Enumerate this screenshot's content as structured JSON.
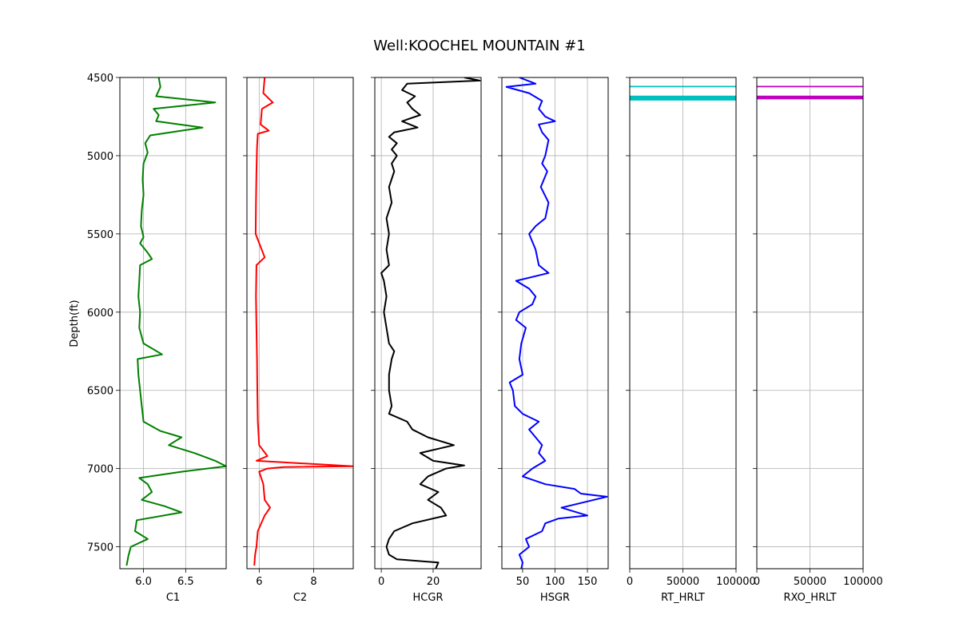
{
  "chart_data": {
    "type": "line",
    "title": "Well:KOOCHEL MOUNTAIN #1",
    "ylabel": "Depth(ft)",
    "ylim": [
      4500,
      7640
    ],
    "y_inverted": true,
    "yticks": [
      4500,
      5000,
      5500,
      6000,
      6500,
      7000,
      7500
    ],
    "grid": true,
    "tracks": [
      {
        "name": "C1",
        "xlabel": "C1",
        "color": "#008000",
        "xlim": [
          5.72,
          6.98
        ],
        "xticks": [
          6.0,
          6.5
        ],
        "xtick_labels": [
          "6.0",
          "6.5"
        ],
        "depth": [
          4500,
          4560,
          4620,
          4660,
          4700,
          4740,
          4780,
          4820,
          4840,
          4870,
          4920,
          4980,
          5050,
          5150,
          5250,
          5350,
          5450,
          5520,
          5560,
          5620,
          5660,
          5700,
          5800,
          5900,
          6000,
          6100,
          6200,
          6270,
          6300,
          6400,
          6500,
          6600,
          6700,
          6760,
          6800,
          6850,
          6900,
          6950,
          6985,
          7020,
          7060,
          7100,
          7150,
          7200,
          7240,
          7280,
          7330,
          7400,
          7450,
          7500,
          7560,
          7620
        ],
        "values": [
          6.18,
          6.2,
          6.15,
          6.85,
          6.12,
          6.18,
          6.15,
          6.7,
          6.45,
          6.08,
          6.02,
          6.05,
          6.0,
          5.99,
          6.0,
          5.98,
          5.97,
          6.0,
          5.96,
          6.05,
          6.1,
          5.96,
          5.95,
          5.94,
          5.96,
          5.95,
          6.0,
          6.22,
          5.93,
          5.94,
          5.96,
          5.98,
          6.0,
          6.2,
          6.45,
          6.3,
          6.6,
          6.85,
          6.98,
          6.45,
          5.95,
          6.05,
          6.1,
          5.98,
          6.25,
          6.45,
          5.92,
          5.9,
          6.05,
          5.85,
          5.82,
          5.8
        ]
      },
      {
        "name": "C2",
        "xlabel": "C2",
        "color": "#ff0000",
        "xlim": [
          5.55,
          9.45
        ],
        "xticks": [
          6,
          8
        ],
        "xtick_labels": [
          "6",
          "8"
        ],
        "depth": [
          4500,
          4600,
          4660,
          4700,
          4800,
          4840,
          4860,
          4950,
          5100,
          5300,
          5500,
          5650,
          5700,
          5900,
          6100,
          6300,
          6500,
          6700,
          6850,
          6920,
          6950,
          6985,
          6990,
          7000,
          7020,
          7100,
          7200,
          7250,
          7300,
          7400,
          7500,
          7550,
          7620
        ],
        "values": [
          6.2,
          6.15,
          6.5,
          6.1,
          6.05,
          6.35,
          5.95,
          5.92,
          5.9,
          5.88,
          5.87,
          6.2,
          5.9,
          5.88,
          5.9,
          5.92,
          5.93,
          5.95,
          6.0,
          6.3,
          5.9,
          9.45,
          6.9,
          6.3,
          6.0,
          6.15,
          6.2,
          6.4,
          6.2,
          5.95,
          5.9,
          5.85,
          5.82
        ]
      },
      {
        "name": "HCGR",
        "xlabel": "HCGR",
        "color": "#000000",
        "xlim": [
          -2.5,
          38.5
        ],
        "xticks": [
          0,
          20
        ],
        "xtick_labels": [
          "0",
          "20"
        ],
        "depth": [
          4500,
          4520,
          4540,
          4580,
          4620,
          4660,
          4700,
          4740,
          4780,
          4820,
          4850,
          4880,
          4920,
          4960,
          5000,
          5050,
          5100,
          5200,
          5300,
          5400,
          5500,
          5600,
          5700,
          5750,
          5800,
          5900,
          6000,
          6100,
          6200,
          6250,
          6300,
          6400,
          6500,
          6600,
          6650,
          6700,
          6750,
          6800,
          6850,
          6900,
          6950,
          6980,
          7000,
          7050,
          7100,
          7150,
          7200,
          7250,
          7300,
          7350,
          7400,
          7450,
          7500,
          7550,
          7580,
          7600,
          7640
        ],
        "values": [
          32,
          38,
          10,
          8,
          13,
          10,
          12,
          15,
          8,
          14,
          5,
          3,
          6,
          4,
          6,
          4,
          5,
          3,
          4,
          2,
          3,
          2,
          3,
          0,
          1,
          2,
          1,
          2,
          3,
          5,
          4,
          3,
          3,
          4,
          3,
          10,
          12,
          18,
          28,
          15,
          20,
          32,
          25,
          18,
          15,
          22,
          18,
          23,
          25,
          12,
          5,
          3,
          2,
          3,
          6,
          22,
          21
        ]
      },
      {
        "name": "HSGR",
        "xlabel": "HSGR",
        "color": "#0000ff",
        "xlim": [
          18,
          182
        ],
        "xticks": [
          50,
          100,
          150
        ],
        "xtick_labels": [
          "50",
          "100",
          "150"
        ],
        "depth": [
          4500,
          4540,
          4560,
          4600,
          4650,
          4700,
          4750,
          4780,
          4800,
          4850,
          4900,
          5000,
          5050,
          5100,
          5200,
          5300,
          5400,
          5450,
          5500,
          5600,
          5700,
          5750,
          5800,
          5850,
          5900,
          5950,
          6000,
          6050,
          6100,
          6200,
          6300,
          6400,
          6450,
          6500,
          6600,
          6650,
          6700,
          6750,
          6800,
          6850,
          6900,
          6950,
          7000,
          7050,
          7100,
          7130,
          7160,
          7180,
          7200,
          7250,
          7300,
          7320,
          7350,
          7400,
          7450,
          7500,
          7550,
          7600,
          7640
        ],
        "values": [
          45,
          70,
          25,
          60,
          80,
          75,
          85,
          100,
          75,
          80,
          90,
          85,
          80,
          88,
          78,
          90,
          85,
          70,
          60,
          70,
          75,
          90,
          40,
          60,
          70,
          65,
          45,
          40,
          55,
          48,
          45,
          50,
          30,
          35,
          38,
          50,
          75,
          60,
          70,
          80,
          75,
          85,
          65,
          50,
          85,
          130,
          140,
          180,
          160,
          110,
          150,
          105,
          85,
          80,
          55,
          60,
          45,
          50,
          48
        ]
      },
      {
        "name": "RT_HRLT",
        "xlabel": "RT_HRLT",
        "color": "#00bfbf",
        "xlim": [
          0,
          100000
        ],
        "xticks": [
          0,
          50000,
          100000
        ],
        "xtick_labels": [
          "0",
          "50000",
          "100000"
        ],
        "depth": [
          4558,
          4622,
          4626,
          4630,
          4634,
          4638,
          4642
        ],
        "values": [
          100000,
          100000,
          100000,
          100000,
          100000,
          100000,
          100000
        ]
      },
      {
        "name": "RXO_HRLT",
        "xlabel": "RXO_HRLT",
        "color": "#bf00bf",
        "xlim": [
          0,
          100000
        ],
        "xticks": [
          0,
          50000,
          100000
        ],
        "xtick_labels": [
          "0",
          "50000",
          "100000"
        ],
        "depth": [
          4558,
          4622,
          4626,
          4630,
          4634
        ],
        "values": [
          100000,
          100000,
          100000,
          100000,
          100000
        ]
      }
    ]
  }
}
